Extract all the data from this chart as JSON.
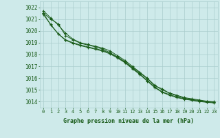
{
  "background_color": "#ceeaea",
  "grid_color": "#aacccc",
  "line_color": "#1a5c1a",
  "marker_color": "#1a5c1a",
  "xlabel": "Graphe pression niveau de la mer (hPa)",
  "xlabel_color": "#1a5c1a",
  "xlabel_fontsize": 6.0,
  "ylabel_fontsize": 5.5,
  "tick_fontsize": 5.0,
  "ylim": [
    1013.5,
    1022.5
  ],
  "xlim": [
    -0.5,
    23.5
  ],
  "yticks": [
    1014,
    1015,
    1016,
    1017,
    1018,
    1019,
    1020,
    1021,
    1022
  ],
  "xticks": [
    0,
    1,
    2,
    3,
    4,
    5,
    6,
    7,
    8,
    9,
    10,
    11,
    12,
    13,
    14,
    15,
    16,
    17,
    18,
    19,
    20,
    21,
    22,
    23
  ],
  "series": [
    [
      1021.7,
      1021.1,
      1020.5,
      1019.8,
      1019.3,
      1019.0,
      1018.85,
      1018.7,
      1018.55,
      1018.3,
      1017.9,
      1017.5,
      1017.0,
      1016.5,
      1016.0,
      1015.4,
      1015.0,
      1014.75,
      1014.55,
      1014.35,
      1014.25,
      1014.15,
      1014.05,
      1014.0
    ],
    [
      1021.5,
      1021.0,
      1020.6,
      1019.6,
      1019.25,
      1018.95,
      1018.8,
      1018.65,
      1018.45,
      1018.15,
      1017.8,
      1017.4,
      1016.9,
      1016.45,
      1015.95,
      1015.35,
      1015.1,
      1014.7,
      1014.5,
      1014.3,
      1014.2,
      1014.1,
      1014.0,
      1013.98
    ],
    [
      1021.4,
      1020.55,
      1019.75,
      1019.25,
      1019.0,
      1018.8,
      1018.65,
      1018.5,
      1018.35,
      1018.1,
      1017.75,
      1017.35,
      1016.85,
      1016.35,
      1015.8,
      1015.25,
      1014.85,
      1014.6,
      1014.4,
      1014.25,
      1014.15,
      1014.05,
      1013.98,
      1013.95
    ],
    [
      1021.5,
      1020.5,
      1019.75,
      1019.2,
      1018.95,
      1018.75,
      1018.6,
      1018.45,
      1018.28,
      1018.05,
      1017.7,
      1017.3,
      1016.8,
      1016.3,
      1015.75,
      1015.2,
      1014.8,
      1014.55,
      1014.35,
      1014.22,
      1014.12,
      1014.02,
      1013.95,
      1013.9
    ]
  ]
}
